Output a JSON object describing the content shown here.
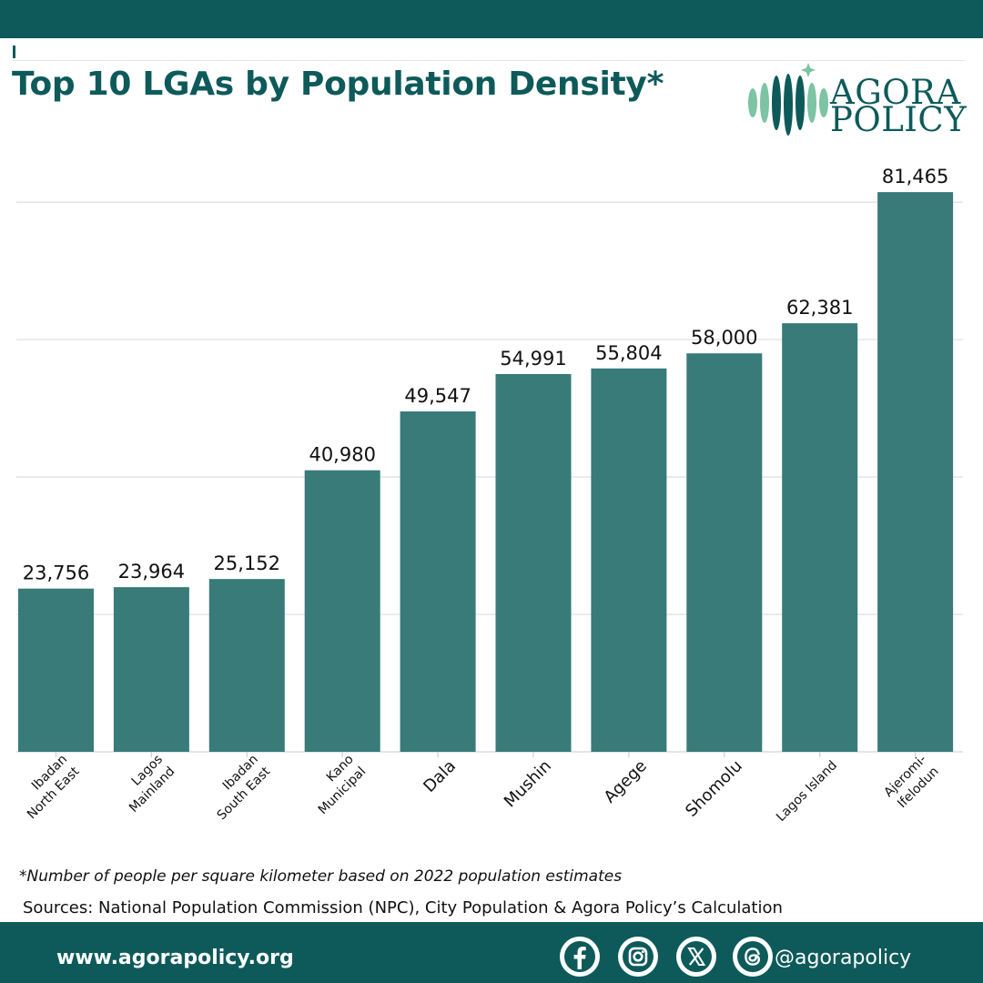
{
  "header": {
    "title": "Top 10 LGAs by Population Density*",
    "logo_line1": "AGORA",
    "logo_line2": "POLICY"
  },
  "colors": {
    "brand": "#0e5a5a",
    "bar": "#387b79",
    "logo_light": "#7cc4a3"
  },
  "chart_data": {
    "type": "bar",
    "title": "Top 10 LGAs by Population Density*",
    "xlabel": "",
    "ylabel": "",
    "grid": true,
    "ylim": [
      0,
      90000
    ],
    "categories": [
      "Ibadan North East",
      "Lagos Mainland",
      "Ibadan South East",
      "Kano Municipal",
      "Dala",
      "Mushin",
      "Agege",
      "Shomolu",
      "Lagos Island",
      "Ajeromi-Ifelodun"
    ],
    "values": [
      23756,
      23964,
      25152,
      40980,
      49547,
      54991,
      55804,
      58000,
      62381,
      81465
    ],
    "value_labels": [
      "23,756",
      "23,964",
      "25,152",
      "40,980",
      "49,547",
      "54,991",
      "55,804",
      "58,000",
      "62,381",
      "81,465"
    ],
    "category_label_lines": [
      [
        "Ibadan",
        "North East"
      ],
      [
        "Lagos",
        "Mainland"
      ],
      [
        "Ibadan",
        "South East"
      ],
      [
        "Kano",
        "Municipal"
      ],
      [
        "Dala"
      ],
      [
        "Mushin"
      ],
      [
        "Agege"
      ],
      [
        "Shomolu"
      ],
      [
        "Lagos Island"
      ],
      [
        "Ajeromi-",
        "Ifelodun"
      ]
    ]
  },
  "footnote": "*Number of people per square kilometer  based on 2022 population estimates",
  "sources": "Sources: National Population Commission (NPC), City Population & Agora Policy’s Calculation",
  "footer": {
    "url": "www.agorapolicy.org",
    "handle": "@agorapolicy",
    "social_icons": [
      "facebook-icon",
      "instagram-icon",
      "x-icon",
      "threads-icon"
    ]
  }
}
